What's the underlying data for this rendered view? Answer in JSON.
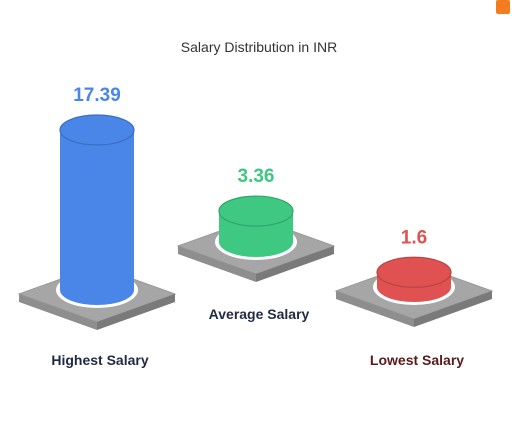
{
  "chart_data": {
    "type": "bar",
    "title": "Salary Distribution in INR",
    "categories": [
      "Highest Salary",
      "Average Salary",
      "Lowest Salary"
    ],
    "values": [
      17.39,
      3.36,
      1.6
    ],
    "value_labels": [
      "17.39",
      "3.36",
      "1.6"
    ],
    "colors": [
      "#4a86e8",
      "#3ec882",
      "#e05252"
    ],
    "label_colors": [
      "#1f2a44",
      "#1f2a44",
      "#5a1a1a"
    ],
    "style": "3d-cylinder-podium",
    "grid": false,
    "legend": "none"
  }
}
